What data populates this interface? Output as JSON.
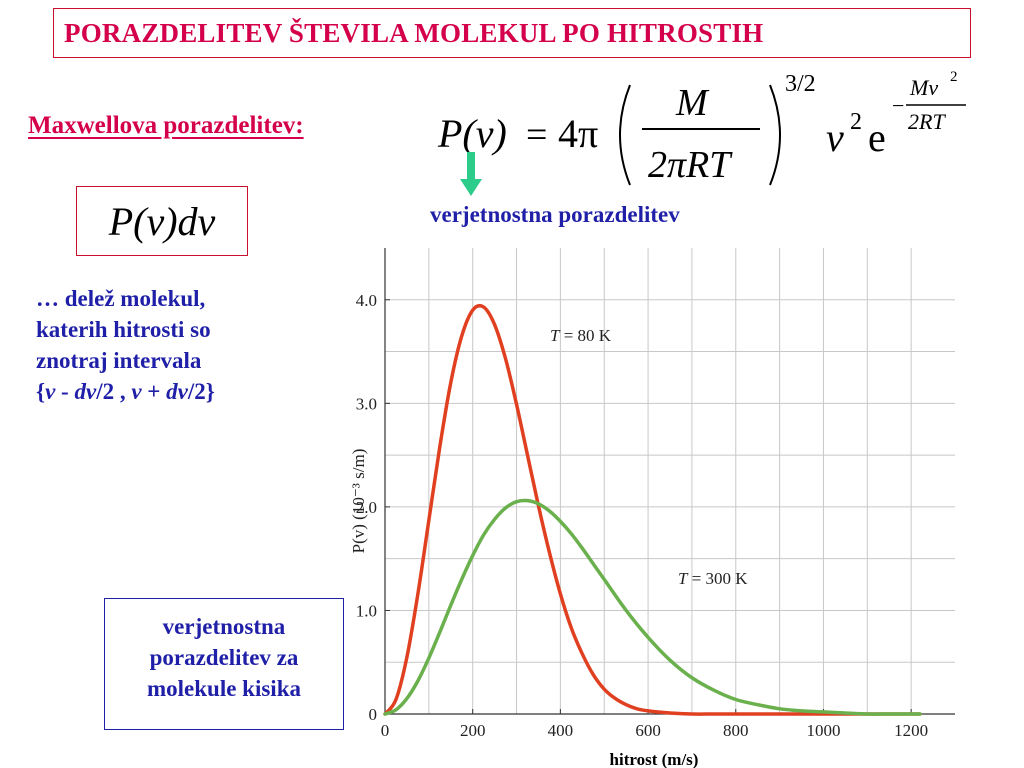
{
  "header": {
    "title": "PORAZDELITEV ŠTEVILA MOLEKUL PO HITROSTIH"
  },
  "formula": {
    "label": "Maxwellova porazdelitev:",
    "lhs": "P(v)",
    "equals": "=",
    "coef": "4π",
    "numerator": "M",
    "denominator": "2πRT",
    "power": "3/2",
    "v_term": "v",
    "v_exp": "2",
    "e": "e",
    "exp_numerator": "Mv",
    "exp_num_power": "2",
    "exp_denominator": "2RT",
    "exp_sign": "−"
  },
  "pvdv": "P(v)dv",
  "arrow_label": "verjetnostna porazdelitev",
  "description": {
    "line1": "… delež molekul,",
    "line2": "katerih hitrosti so",
    "line3": "znotraj intervala",
    "line4_parts": [
      "{",
      "v",
      " - ",
      "dv",
      "/2 , ",
      "v",
      " + ",
      "dv",
      "/2}"
    ]
  },
  "note": {
    "line1": "verjetnostna",
    "line2": "porazdelitev za",
    "line3": "molekule kisika"
  },
  "colors": {
    "accent_red": "#d4004b",
    "text_blue": "#1f1fa8",
    "curve_80K": "#e04020",
    "curve_300K": "#6ab04c",
    "arrow_fill": "#2ecc8a"
  },
  "chart_data": {
    "type": "line",
    "xlabel": "hitrost (m/s)",
    "ylabel": "P(v)  (10⁻³ s/m)",
    "xlim": [
      0,
      1300
    ],
    "ylim": [
      0,
      4.5
    ],
    "x_ticks": [
      0,
      200,
      400,
      600,
      800,
      1000,
      1200
    ],
    "y_ticks": [
      0,
      1.0,
      2.0,
      3.0,
      4.0
    ],
    "x_tick_labels": [
      "0",
      "200",
      "400",
      "600",
      "800",
      "1000",
      "1200"
    ],
    "y_tick_labels": [
      "0",
      "1.0",
      "2.0",
      "3.0",
      "4.0"
    ],
    "grid": true,
    "series": [
      {
        "name": "T = 80 K",
        "label_T": "T",
        "label_rest": " = 80 K",
        "color": "#e04020",
        "x": [
          0,
          25,
          50,
          75,
          100,
          125,
          150,
          175,
          200,
          225,
          250,
          275,
          300,
          325,
          350,
          375,
          400,
          425,
          450,
          475,
          500,
          525,
          550,
          575,
          600,
          650,
          700,
          750,
          800,
          900,
          1000,
          1100,
          1220
        ],
        "y": [
          0.0,
          0.14,
          0.55,
          1.16,
          1.87,
          2.58,
          3.2,
          3.65,
          3.9,
          3.93,
          3.76,
          3.43,
          2.99,
          2.5,
          2.01,
          1.56,
          1.16,
          0.83,
          0.58,
          0.38,
          0.24,
          0.15,
          0.09,
          0.05,
          0.03,
          0.01,
          0.0,
          0.0,
          0.0,
          0.0,
          0.0,
          0.0,
          0.0
        ]
      },
      {
        "name": "T = 300 K",
        "label_T": "T",
        "label_rest": " = 300 K",
        "color": "#6ab04c",
        "x": [
          0,
          25,
          50,
          75,
          100,
          125,
          150,
          175,
          200,
          225,
          250,
          275,
          300,
          325,
          350,
          375,
          400,
          425,
          450,
          475,
          500,
          550,
          600,
          650,
          700,
          750,
          800,
          850,
          900,
          950,
          1000,
          1050,
          1100,
          1150,
          1220
        ],
        "y": [
          0.0,
          0.04,
          0.15,
          0.32,
          0.54,
          0.79,
          1.05,
          1.3,
          1.53,
          1.73,
          1.88,
          1.99,
          2.05,
          2.06,
          2.03,
          1.96,
          1.86,
          1.74,
          1.6,
          1.45,
          1.3,
          1.0,
          0.74,
          0.52,
          0.35,
          0.23,
          0.14,
          0.09,
          0.05,
          0.03,
          0.02,
          0.01,
          0.0,
          0.0,
          0.0
        ]
      }
    ]
  }
}
